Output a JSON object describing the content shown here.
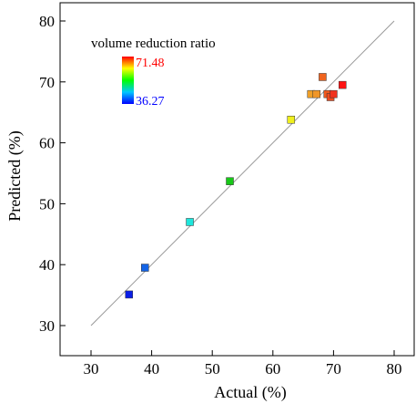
{
  "chart_data": {
    "type": "scatter",
    "title": "",
    "xlabel": "Actual (%)",
    "ylabel": "Predicted (%)",
    "xlim": [
      30,
      80
    ],
    "ylim": [
      30,
      80
    ],
    "xticks": [
      "30",
      "40",
      "50",
      "60",
      "70",
      "80"
    ],
    "yticks": [
      "30",
      "40",
      "50",
      "60",
      "70",
      "80"
    ],
    "grid": false,
    "reference_line": {
      "x": [
        30,
        80
      ],
      "y": [
        30,
        80
      ],
      "color": "#999999"
    },
    "colorbar": {
      "title": "volume reduction ratio",
      "max_label": "71.48",
      "min_label": "36.27",
      "max_color": "#ff0000",
      "min_color": "#0000ff",
      "placement": "top-left"
    },
    "points": [
      {
        "x": 36.27,
        "y": 35.1,
        "color": "#0a1ee6"
      },
      {
        "x": 38.9,
        "y": 39.5,
        "color": "#1464e6"
      },
      {
        "x": 46.3,
        "y": 47.0,
        "color": "#1ee6dc"
      },
      {
        "x": 52.9,
        "y": 53.7,
        "color": "#18c818"
      },
      {
        "x": 63.0,
        "y": 63.8,
        "color": "#f0f01e"
      },
      {
        "x": 66.3,
        "y": 68.0,
        "color": "#f0a028"
      },
      {
        "x": 67.2,
        "y": 68.0,
        "color": "#f09628"
      },
      {
        "x": 68.2,
        "y": 70.8,
        "color": "#f0641e"
      },
      {
        "x": 69.0,
        "y": 68.0,
        "color": "#f05a1e"
      },
      {
        "x": 69.5,
        "y": 67.5,
        "color": "#f04b1e"
      },
      {
        "x": 70.0,
        "y": 68.0,
        "color": "#f0321e"
      },
      {
        "x": 71.48,
        "y": 69.5,
        "color": "#ff1414"
      }
    ]
  }
}
